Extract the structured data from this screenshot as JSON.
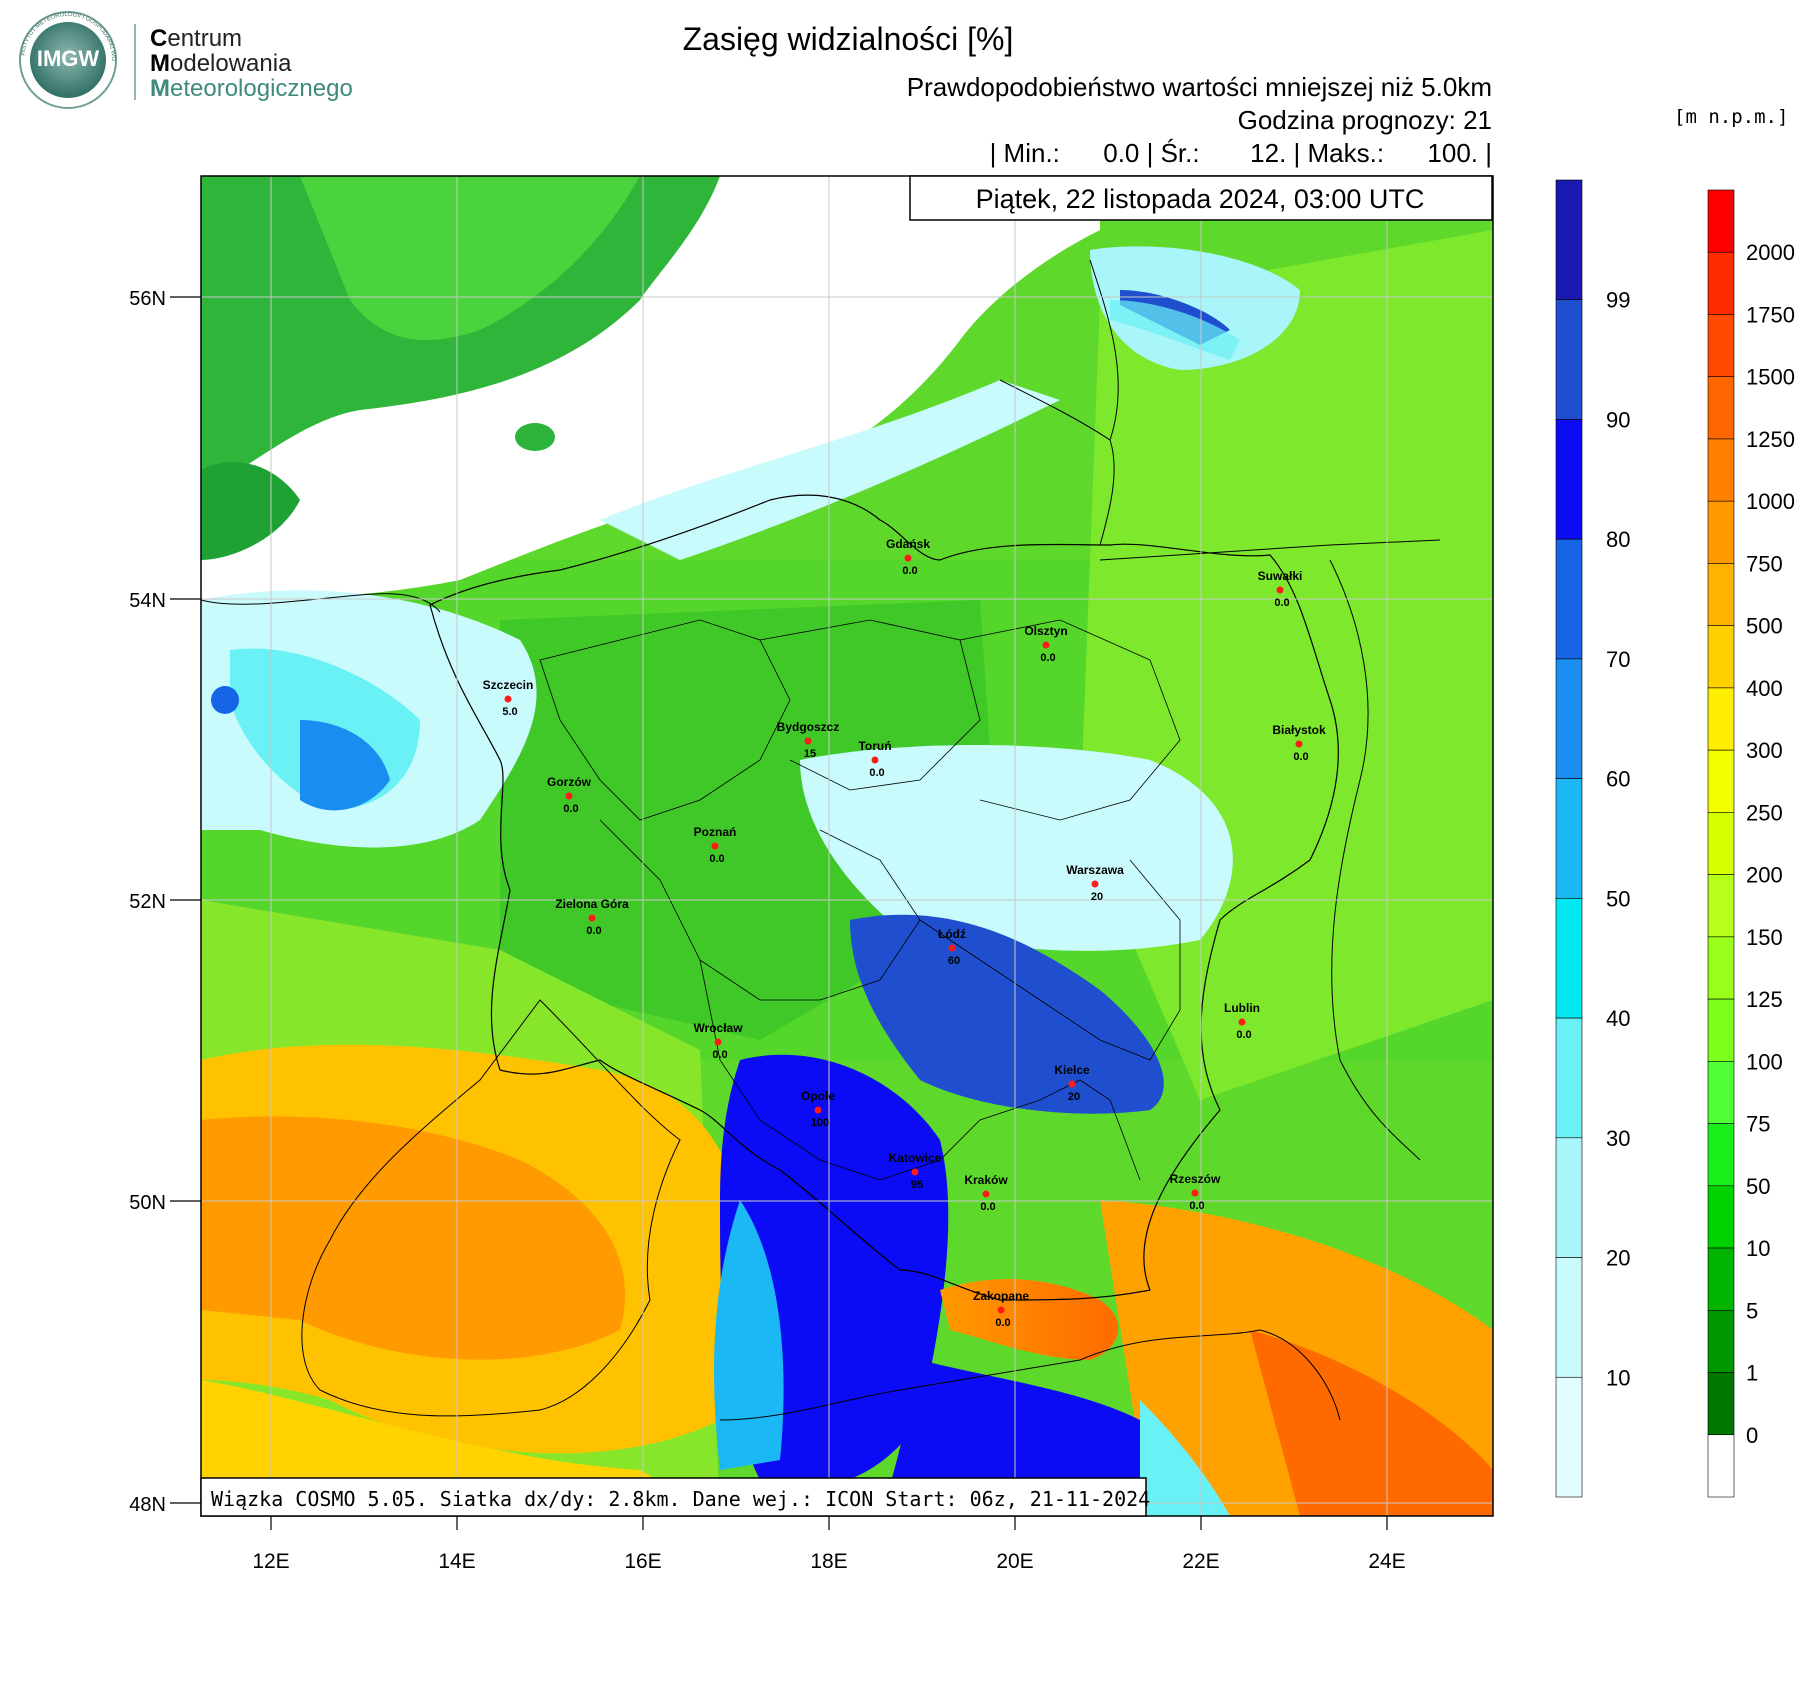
{
  "logo": {
    "emblem_text": "IMGW",
    "emblem_ring_text": "INSTYTUT METEOROLOGII I GOSPODARKI WODNEJ",
    "line1_initial": "C",
    "line1_rest": "entrum",
    "line2_initial": "M",
    "line2_rest": "odelowania",
    "line3_initial": "M",
    "line3_rest": "eteorologicznego"
  },
  "header": {
    "title": "Zasięg widzialności [%]",
    "subtitle": "Prawdopodobieństwo wartości mniejszej niż 5.0km",
    "forecast_hour": "Godzina prognozy: 21",
    "stats": "| Min.:      0.0 | Śr.:       12. | Maks.:      100. |",
    "date": "Piątek, 22 listopada 2024, 03:00 UTC"
  },
  "footer": {
    "model_info": "Wiązka COSMO 5.05. Siatka dx/dy: 2.8km. Dane wej.: ICON Start: 06z, 21-11-2024"
  },
  "axes": {
    "lat_labels": [
      "56N",
      "54N",
      "52N",
      "50N",
      "48N"
    ],
    "lon_labels": [
      "12E",
      "14E",
      "16E",
      "18E",
      "20E",
      "22E",
      "24E"
    ]
  },
  "prob_scale": {
    "labels": [
      "99",
      "90",
      "80",
      "70",
      "60",
      "50",
      "40",
      "30",
      "20",
      "10"
    ],
    "colors": [
      "#1a1ab0",
      "#1f4fcf",
      "#0b0bf5",
      "#1565e6",
      "#1a8ef0",
      "#1cb8f5",
      "#00e8f2",
      "#6af1f5",
      "#a8f6f9",
      "#c9fafc",
      "#e3fdfe"
    ]
  },
  "height_scale": {
    "unit": "[m n.p.m.]",
    "labels": [
      "2000",
      "1750",
      "1500",
      "1250",
      "1000",
      "750",
      "500",
      "400",
      "300",
      "250",
      "200",
      "150",
      "125",
      "100",
      "75",
      "50",
      "10",
      "5",
      "1",
      "0"
    ],
    "colors": [
      "#ff0000",
      "#ff2a00",
      "#ff4a00",
      "#ff6600",
      "#ff7f00",
      "#ff9900",
      "#ffb300",
      "#ffd000",
      "#ffee00",
      "#f2ff00",
      "#d6ff00",
      "#b8ff1a",
      "#9aff1a",
      "#7cff1a",
      "#4dff33",
      "#19f019",
      "#00d200",
      "#00b400",
      "#009600",
      "#007800",
      "#ffffff"
    ]
  },
  "cities": [
    {
      "name": "Gdańsk",
      "value": "0.0"
    },
    {
      "name": "Suwałki",
      "value": "0.0"
    },
    {
      "name": "Olsztyn",
      "value": "0.0"
    },
    {
      "name": "Szczecin",
      "value": "5.0"
    },
    {
      "name": "Bydgoszcz",
      "value": "15"
    },
    {
      "name": "Toruń",
      "value": "0.0"
    },
    {
      "name": "Białystok",
      "value": "0.0"
    },
    {
      "name": "Gorzów",
      "value": "0.0"
    },
    {
      "name": "Poznań",
      "value": "0.0"
    },
    {
      "name": "Warszawa",
      "value": "20"
    },
    {
      "name": "Zielona Góra",
      "value": "0.0"
    },
    {
      "name": "Łódź",
      "value": "60"
    },
    {
      "name": "Lublin",
      "value": "0.0"
    },
    {
      "name": "Wrocław",
      "value": "0.0"
    },
    {
      "name": "Kielce",
      "value": "20"
    },
    {
      "name": "Opole",
      "value": "100"
    },
    {
      "name": "Katowice",
      "value": "95"
    },
    {
      "name": "Kraków",
      "value": "0.0"
    },
    {
      "name": "Rzeszów",
      "value": "0.0"
    },
    {
      "name": "Zakopane",
      "value": "0.0"
    }
  ]
}
